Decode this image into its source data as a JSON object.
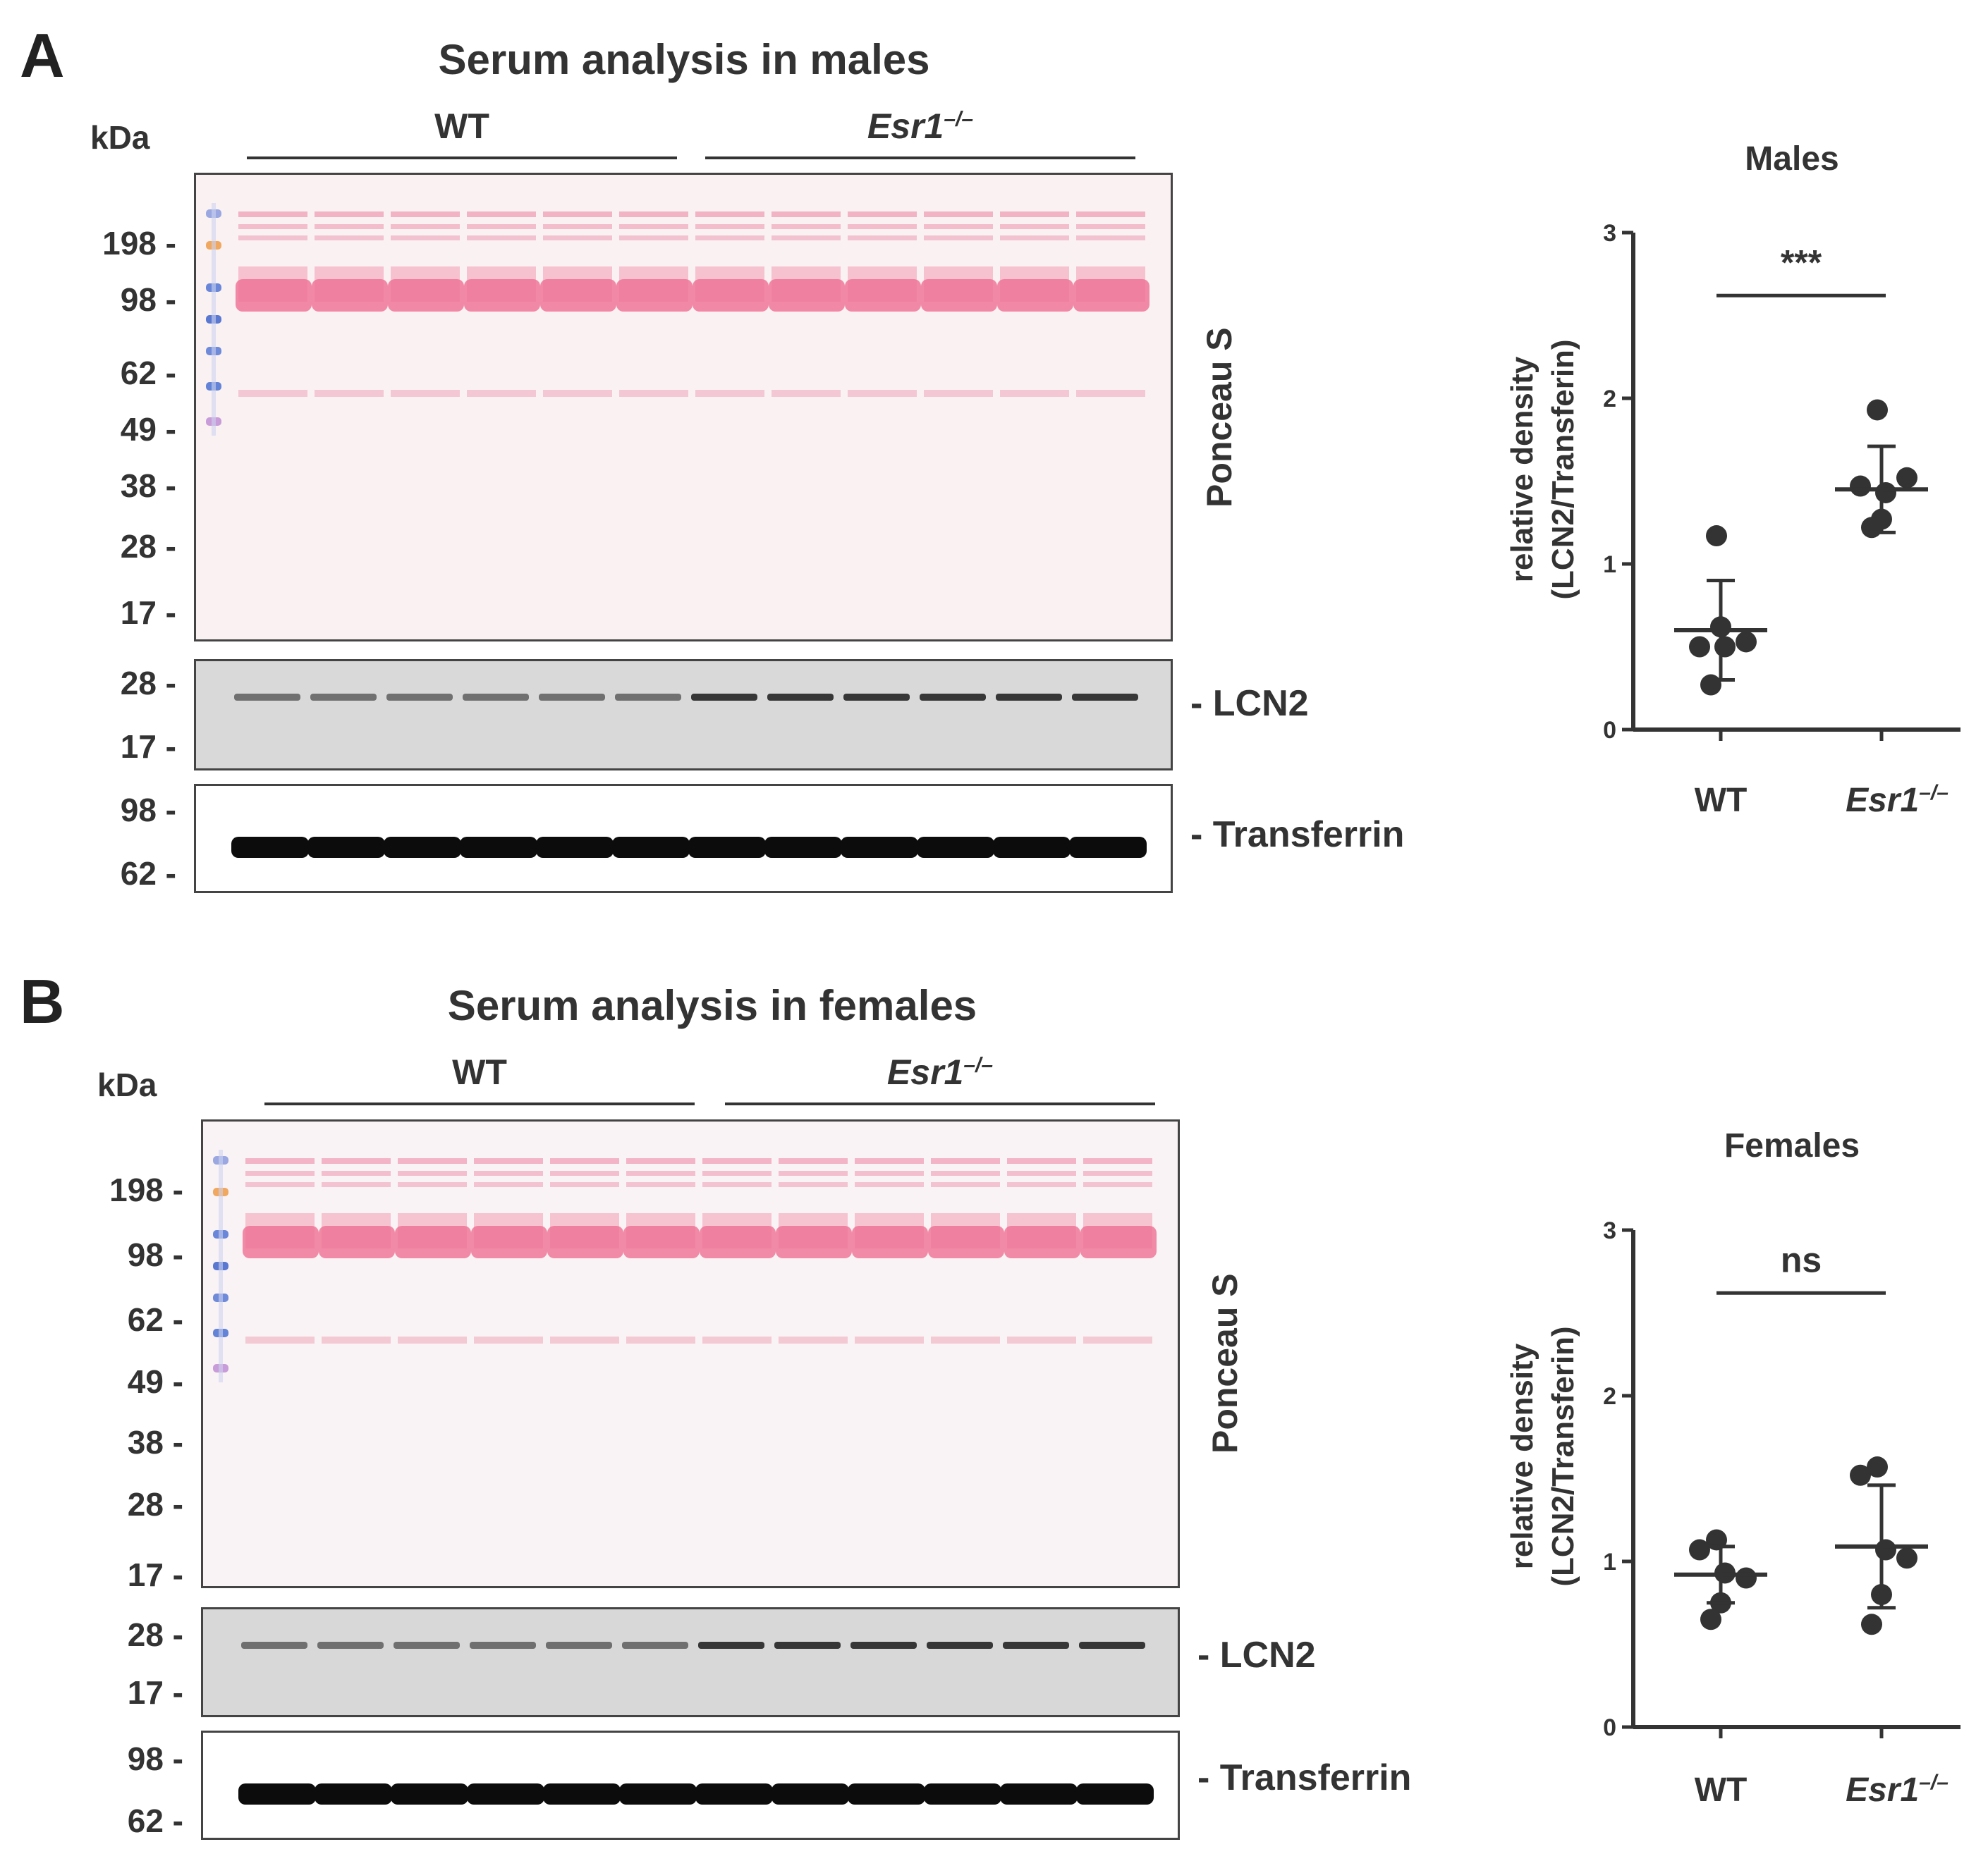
{
  "panels": [
    {
      "letter": "A",
      "title": "Serum analysis in males",
      "kda_label": "kDa",
      "groups": [
        {
          "label_main": "WT",
          "label_sup": ""
        },
        {
          "label_main": "Esr1",
          "label_sup": "–/–"
        }
      ],
      "ponceau_markers": [
        "198 -",
        "98 -",
        "62 -",
        "49 -",
        "38 -",
        "28 -",
        "17 -"
      ],
      "ponceau_label": "Ponceau S",
      "lcn2_markers": [
        "28 -",
        "17 -"
      ],
      "lcn2_label": "- LCN2",
      "transferrin_markers": [
        "98 -",
        "62 -"
      ],
      "transferrin_label": "- Transferrin"
    },
    {
      "letter": "B",
      "title": "Serum analysis in females",
      "kda_label": "kDa",
      "groups": [
        {
          "label_main": "WT",
          "label_sup": ""
        },
        {
          "label_main": "Esr1",
          "label_sup": "–/–"
        }
      ],
      "ponceau_markers": [
        "198 -",
        "98 -",
        "62 -",
        "49 -",
        "38 -",
        "28 -",
        "17 -"
      ],
      "ponceau_label": "Ponceau S",
      "lcn2_markers": [
        "28 -",
        "17 -"
      ],
      "lcn2_label": "- LCN2",
      "transferrin_markers": [
        "98 -",
        "62 -"
      ],
      "transferrin_label": "- Transferrin"
    }
  ],
  "chart_data": [
    {
      "type": "scatter",
      "title": "Males",
      "ylabel_line1": "relative density",
      "ylabel_line2": "(LCN2/Transferin)",
      "ylim": [
        0,
        3
      ],
      "yticks": [
        "0",
        "1",
        "2",
        "3"
      ],
      "categories": [
        {
          "main": "WT",
          "sup": ""
        },
        {
          "main": "Esr1",
          "sup": "–/–"
        }
      ],
      "series": [
        {
          "category": "WT",
          "values": [
            1.17,
            0.5,
            0.5,
            0.53,
            0.62,
            0.27
          ],
          "mean": 0.6,
          "sd_low": 0.3,
          "sd_high": 0.9
        },
        {
          "category": "Esr1–/–",
          "values": [
            1.93,
            1.47,
            1.43,
            1.52,
            1.27,
            1.22
          ],
          "mean": 1.45,
          "sd_low": 1.19,
          "sd_high": 1.71
        }
      ],
      "significance": "***",
      "color": "#333333"
    },
    {
      "type": "scatter",
      "title": "Females",
      "ylabel_line1": "relative density",
      "ylabel_line2": "(LCN2/Transferin)",
      "ylim": [
        0,
        3
      ],
      "yticks": [
        "0",
        "1",
        "2",
        "3"
      ],
      "categories": [
        {
          "main": "WT",
          "sup": ""
        },
        {
          "main": "Esr1",
          "sup": "–/–"
        }
      ],
      "series": [
        {
          "category": "WT",
          "values": [
            1.13,
            1.07,
            0.93,
            0.9,
            0.75,
            0.65
          ],
          "mean": 0.92,
          "sd_low": 0.75,
          "sd_high": 1.09
        },
        {
          "category": "Esr1–/–",
          "values": [
            1.57,
            1.52,
            1.07,
            1.02,
            0.8,
            0.62
          ],
          "mean": 1.09,
          "sd_low": 0.72,
          "sd_high": 1.46
        }
      ],
      "significance": "ns",
      "color": "#333333"
    }
  ]
}
